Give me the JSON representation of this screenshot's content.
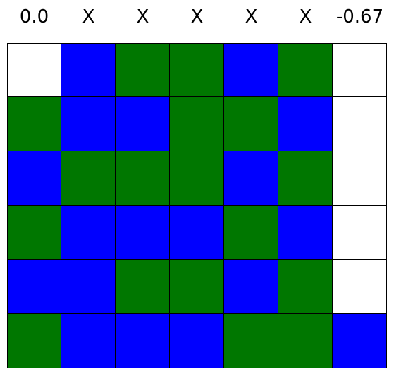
{
  "column_labels": [
    "0.0",
    "X",
    "X",
    "X",
    "X",
    "X",
    "-0.67"
  ],
  "colors": {
    "empty": "#ffffff",
    "blue": "#0000ff",
    "green": "#007700",
    "grid_line": "#000000"
  },
  "board": [
    [
      "empty",
      "blue",
      "green",
      "green",
      "blue",
      "green",
      "empty"
    ],
    [
      "green",
      "blue",
      "blue",
      "green",
      "green",
      "blue",
      "empty"
    ],
    [
      "blue",
      "green",
      "green",
      "green",
      "blue",
      "green",
      "empty"
    ],
    [
      "green",
      "blue",
      "blue",
      "blue",
      "green",
      "blue",
      "empty"
    ],
    [
      "blue",
      "blue",
      "green",
      "green",
      "blue",
      "green",
      "empty"
    ],
    [
      "green",
      "blue",
      "blue",
      "blue",
      "green",
      "green",
      "blue"
    ]
  ]
}
